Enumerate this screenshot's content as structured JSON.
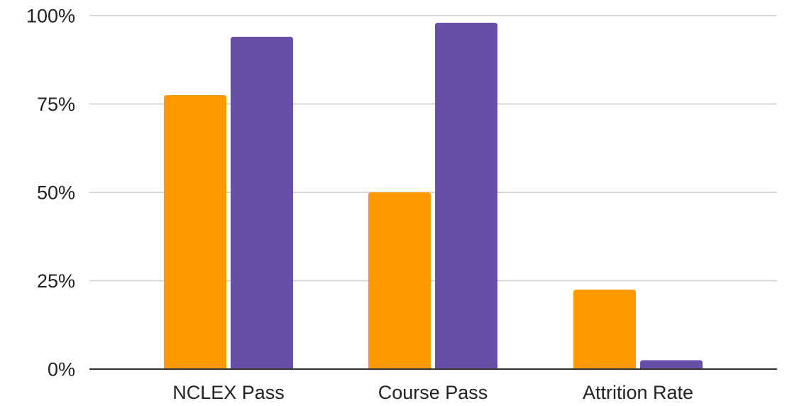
{
  "chart_data": {
    "type": "bar",
    "categories": [
      "NCLEX Pass",
      "Course Pass",
      "Attrition Rate"
    ],
    "series": [
      {
        "values": [
          77.5,
          50,
          22.5
        ],
        "color": "#ff9900"
      },
      {
        "values": [
          94,
          98,
          2.5
        ],
        "color": "#674ea7"
      }
    ],
    "y_ticks": [
      "0%",
      "25%",
      "50%",
      "75%",
      "100%"
    ],
    "ylim": [
      0,
      100
    ],
    "grid": true,
    "legend": "none"
  }
}
